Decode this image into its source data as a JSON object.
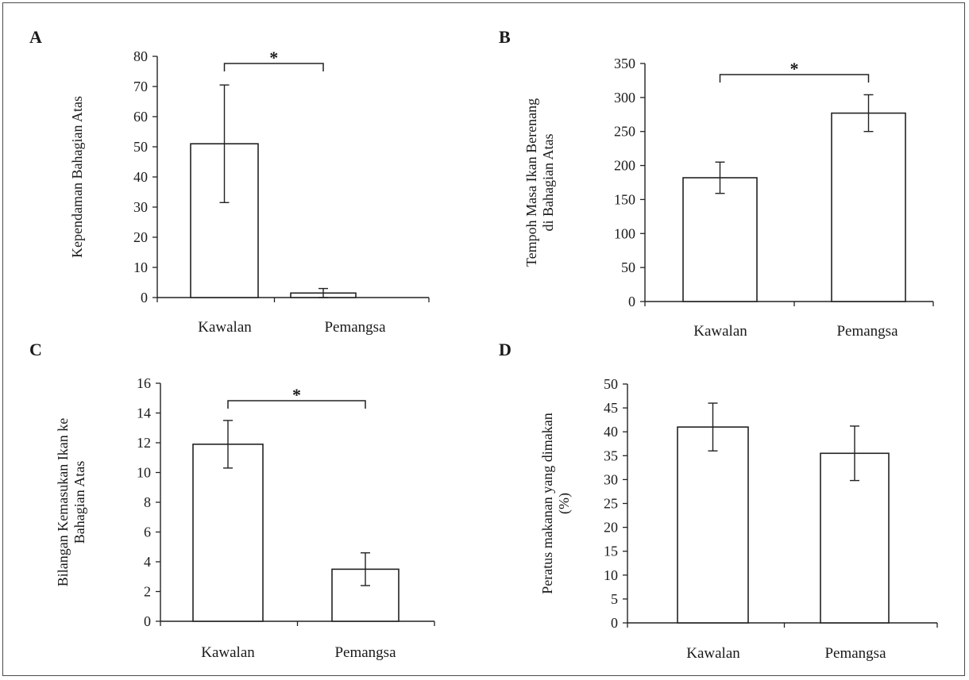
{
  "chart_data": [
    {
      "panel": "A",
      "type": "bar",
      "categories": [
        "Kawalan",
        "Pemangsa"
      ],
      "values": [
        51,
        1.5
      ],
      "errors": [
        19.5,
        1.5
      ],
      "ylabel": [
        "Kependaman Bahagian Atas"
      ],
      "ylim": [
        0,
        80
      ],
      "yticks": [
        0,
        10,
        20,
        30,
        40,
        50,
        60,
        70,
        80
      ],
      "significance": "*"
    },
    {
      "panel": "B",
      "type": "bar",
      "categories": [
        "Kawalan",
        "Pemangsa"
      ],
      "values": [
        182,
        277
      ],
      "errors": [
        23,
        27
      ],
      "ylabel": [
        "Tempoh Masa Ikan Berenang",
        "di Bahagian Atas"
      ],
      "ylim": [
        0,
        350
      ],
      "yticks": [
        0,
        50,
        100,
        150,
        200,
        250,
        300,
        350
      ],
      "significance": "*"
    },
    {
      "panel": "C",
      "type": "bar",
      "categories": [
        "Kawalan",
        "Pemangsa"
      ],
      "values": [
        11.9,
        3.5
      ],
      "errors": [
        1.6,
        1.1
      ],
      "ylabel": [
        "Bilangan Kemasukan Ikan ke",
        "Bahagian Atas"
      ],
      "ylim": [
        0,
        16
      ],
      "yticks": [
        0,
        2,
        4,
        6,
        8,
        10,
        12,
        14,
        16
      ],
      "significance": "*"
    },
    {
      "panel": "D",
      "type": "bar",
      "categories": [
        "Kawalan",
        "Pemangsa"
      ],
      "values": [
        41,
        35.5
      ],
      "errors": [
        5,
        5.7
      ],
      "ylabel": [
        "Peratus makanan yang dimakan",
        "(%)"
      ],
      "ylim": [
        0,
        50
      ],
      "yticks": [
        0,
        5,
        10,
        15,
        20,
        25,
        30,
        35,
        40,
        45,
        50
      ],
      "significance": ""
    }
  ]
}
